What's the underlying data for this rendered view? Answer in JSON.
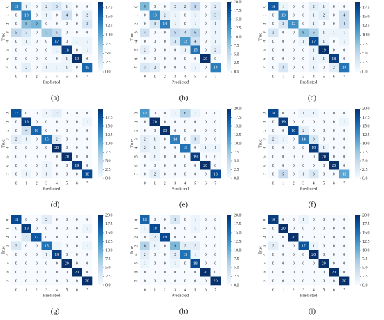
{
  "chart_data": [
    {
      "type": "heatmap",
      "caption": "(a)",
      "x_label": "Predicted",
      "y_label": "True",
      "colormap": "Blues",
      "x_categories": [
        "0",
        "1",
        "2",
        "3",
        "4",
        "5",
        "6",
        "7"
      ],
      "y_categories": [
        "0",
        "1",
        "2",
        "3",
        "4",
        "5",
        "6",
        "7"
      ],
      "values": [
        [
          13,
          1,
          0,
          2,
          3,
          1,
          0,
          0
        ],
        [
          0,
          13,
          0,
          1,
          0,
          4,
          0,
          2
        ],
        [
          0,
          8,
          9,
          0,
          0,
          0,
          0,
          3
        ],
        [
          5,
          3,
          0,
          7,
          5,
          0,
          0,
          0
        ],
        [
          0,
          1,
          0,
          0,
          17,
          0,
          1,
          1
        ],
        [
          0,
          0,
          0,
          0,
          1,
          18,
          0,
          1
        ],
        [
          0,
          0,
          0,
          0,
          0,
          1,
          19,
          0
        ],
        [
          0,
          2,
          0,
          1,
          1,
          1,
          0,
          15
        ]
      ],
      "zlim": [
        0,
        19
      ],
      "zticks": [
        {
          "value": 0,
          "label": "0.0"
        },
        2.5,
        {
          "value": 5,
          "label": "5.0"
        },
        7.5,
        {
          "value": 10,
          "label": "10.0"
        },
        12.5,
        {
          "value": 15,
          "label": "15.0"
        },
        17.5
      ]
    },
    {
      "type": "heatmap",
      "caption": "(b)",
      "x_label": "Predicted",
      "y_label": "True",
      "colormap": "Blues",
      "x_categories": [
        "0",
        "1",
        "2",
        "3",
        "4",
        "5",
        "6",
        "7"
      ],
      "y_categories": [
        "0",
        "1",
        "2",
        "3",
        "4",
        "5",
        "6",
        "7"
      ],
      "values": [
        [
          9,
          0,
          0,
          2,
          2,
          5,
          0,
          2
        ],
        [
          0,
          13,
          2,
          1,
          0,
          1,
          0,
          3
        ],
        [
          0,
          3,
          14,
          1,
          0,
          1,
          0,
          1
        ],
        [
          4,
          0,
          0,
          5,
          4,
          6,
          0,
          1
        ],
        [
          0,
          0,
          0,
          3,
          12,
          4,
          0,
          1
        ],
        [
          2,
          0,
          0,
          0,
          1,
          15,
          0,
          2
        ],
        [
          0,
          0,
          0,
          0,
          0,
          0,
          20,
          0
        ],
        [
          3,
          2,
          0,
          0,
          0,
          1,
          0,
          14
        ]
      ],
      "zlim": [
        0,
        20
      ],
      "zticks": [
        {
          "value": 0,
          "label": "0.0"
        },
        2.5,
        {
          "value": 5,
          "label": "5.0"
        },
        7.5,
        {
          "value": 10,
          "label": "10.0"
        },
        12.5,
        {
          "value": 15,
          "label": "15.0"
        },
        17.5,
        {
          "value": 20,
          "label": "20.0"
        }
      ]
    },
    {
      "type": "heatmap",
      "caption": "(c)",
      "x_label": "Predicted",
      "y_label": "True",
      "colormap": "Blues",
      "x_categories": [
        "0",
        "1",
        "2",
        "3",
        "4",
        "5",
        "6",
        "7"
      ],
      "y_categories": [
        "0",
        "1",
        "2",
        "3",
        "4",
        "5",
        "6",
        "7"
      ],
      "values": [
        [
          16,
          1,
          0,
          0,
          2,
          1,
          0,
          0
        ],
        [
          0,
          13,
          0,
          0,
          1,
          2,
          0,
          4
        ],
        [
          0,
          3,
          12,
          0,
          1,
          0,
          0,
          4
        ],
        [
          3,
          0,
          0,
          8,
          6,
          1,
          1,
          1
        ],
        [
          0,
          0,
          0,
          1,
          17,
          1,
          0,
          1
        ],
        [
          0,
          0,
          0,
          0,
          1,
          19,
          0,
          0
        ],
        [
          0,
          0,
          0,
          0,
          1,
          1,
          18,
          0
        ],
        [
          0,
          3,
          0,
          0,
          1,
          0,
          2,
          14
        ]
      ],
      "zlim": [
        0,
        19
      ],
      "zticks": [
        {
          "value": 0,
          "label": "0.0"
        },
        2.5,
        {
          "value": 5,
          "label": "5.0"
        },
        7.5,
        {
          "value": 10,
          "label": "10.0"
        },
        12.5,
        {
          "value": 15,
          "label": "15.0"
        },
        17.5
      ]
    },
    {
      "type": "heatmap",
      "caption": "(d)",
      "x_label": "Predicted",
      "y_label": "True",
      "colormap": "Blues",
      "x_categories": [
        "0",
        "1",
        "2",
        "3",
        "4",
        "5",
        "6",
        "7"
      ],
      "y_categories": [
        "0",
        "1",
        "2",
        "3",
        "4",
        "5",
        "6",
        "7"
      ],
      "values": [
        [
          17,
          0,
          0,
          1,
          2,
          0,
          0,
          0
        ],
        [
          0,
          19,
          0,
          0,
          0,
          0,
          0,
          1
        ],
        [
          0,
          4,
          16,
          0,
          0,
          0,
          0,
          0
        ],
        [
          2,
          1,
          0,
          15,
          2,
          0,
          0,
          0
        ],
        [
          0,
          0,
          0,
          0,
          20,
          0,
          0,
          0
        ],
        [
          0,
          0,
          0,
          0,
          0,
          20,
          0,
          0
        ],
        [
          0,
          0,
          0,
          1,
          0,
          0,
          19,
          0
        ],
        [
          0,
          1,
          0,
          1,
          0,
          0,
          0,
          18
        ]
      ],
      "zlim": [
        0,
        20
      ],
      "zticks": [
        {
          "value": 0,
          "label": "0.0"
        },
        2.5,
        {
          "value": 5,
          "label": "5.0"
        },
        7.5,
        {
          "value": 10,
          "label": "10.0"
        },
        12.5,
        {
          "value": 15,
          "label": "15.0"
        },
        17.5
      ]
    },
    {
      "type": "heatmap",
      "caption": "(e)",
      "x_label": "Predicted",
      "y_label": "True",
      "colormap": "Blues",
      "x_categories": [
        "0",
        "1",
        "2",
        "3",
        "4",
        "5",
        "6",
        "7"
      ],
      "y_categories": [
        "0",
        "1",
        "2",
        "3",
        "4",
        "5",
        "6",
        "7"
      ],
      "values": [
        [
          12,
          0,
          0,
          1,
          6,
          1,
          0,
          0
        ],
        [
          0,
          20,
          0,
          0,
          0,
          0,
          0,
          0
        ],
        [
          0,
          0,
          20,
          0,
          0,
          0,
          0,
          0
        ],
        [
          2,
          1,
          0,
          14,
          0,
          3,
          0,
          0
        ],
        [
          2,
          1,
          0,
          0,
          15,
          0,
          1,
          1
        ],
        [
          0,
          1,
          0,
          0,
          0,
          19,
          0,
          0
        ],
        [
          0,
          0,
          0,
          0,
          0,
          0,
          20,
          0
        ],
        [
          0,
          2,
          0,
          0,
          0,
          0,
          0,
          18
        ]
      ],
      "zlim": [
        0,
        20
      ],
      "zticks": [
        {
          "value": 0,
          "label": "0.0"
        },
        2.5,
        {
          "value": 5,
          "label": "5.0"
        },
        7.5,
        {
          "value": 10,
          "label": "10.0"
        },
        12.5,
        {
          "value": 15,
          "label": "15.0"
        },
        17.5,
        {
          "value": 20,
          "label": "20.0"
        }
      ]
    },
    {
      "type": "heatmap",
      "caption": "(f)",
      "x_label": "Predicted",
      "y_label": "True",
      "colormap": "Blues",
      "x_categories": [
        "0",
        "1",
        "2",
        "3",
        "4",
        "5",
        "6",
        "7"
      ],
      "y_categories": [
        "0",
        "1",
        "2",
        "3",
        "4",
        "5",
        "6",
        "7"
      ],
      "values": [
        [
          18,
          0,
          0,
          1,
          1,
          0,
          0,
          0
        ],
        [
          0,
          19,
          0,
          0,
          0,
          0,
          0,
          1
        ],
        [
          0,
          0,
          18,
          2,
          0,
          0,
          0,
          0
        ],
        [
          2,
          1,
          0,
          14,
          3,
          0,
          0,
          0
        ],
        [
          0,
          0,
          0,
          0,
          19,
          1,
          0,
          0
        ],
        [
          0,
          0,
          0,
          0,
          0,
          20,
          0,
          0
        ],
        [
          0,
          0,
          0,
          0,
          0,
          0,
          20,
          0
        ],
        [
          0,
          5,
          0,
          1,
          3,
          0,
          0,
          11
        ]
      ],
      "zlim": [
        0,
        20
      ],
      "zticks": [
        {
          "value": 0,
          "label": "0.0"
        },
        2.5,
        {
          "value": 5,
          "label": "5.0"
        },
        7.5,
        {
          "value": 10,
          "label": "10.0"
        },
        12.5,
        {
          "value": 15,
          "label": "15.0"
        },
        17.5,
        {
          "value": 20,
          "label": "20.0"
        }
      ]
    },
    {
      "type": "heatmap",
      "caption": "(g)",
      "x_label": "Predicted",
      "y_label": "True",
      "colormap": "Blues",
      "x_categories": [
        "0",
        "1",
        "2",
        "3",
        "4",
        "5",
        "6",
        "7"
      ],
      "y_categories": [
        "0",
        "1",
        "2",
        "3",
        "4",
        "5",
        "6",
        "7"
      ],
      "values": [
        [
          18,
          0,
          0,
          2,
          0,
          0,
          0,
          0
        ],
        [
          0,
          19,
          0,
          0,
          0,
          0,
          0,
          1
        ],
        [
          0,
          3,
          17,
          0,
          0,
          0,
          0,
          0
        ],
        [
          3,
          0,
          0,
          15,
          1,
          0,
          0,
          1
        ],
        [
          0,
          0,
          0,
          1,
          19,
          0,
          0,
          0
        ],
        [
          0,
          0,
          0,
          0,
          0,
          20,
          0,
          0
        ],
        [
          0,
          0,
          0,
          0,
          0,
          0,
          20,
          0
        ],
        [
          0,
          0,
          0,
          0,
          0,
          0,
          0,
          20
        ]
      ],
      "zlim": [
        0,
        20
      ],
      "zticks": [
        {
          "value": 0,
          "label": "0.0"
        },
        2.5,
        {
          "value": 5,
          "label": "5.0"
        },
        7.5,
        {
          "value": 10,
          "label": "10.0"
        },
        12.5,
        {
          "value": 15,
          "label": "15.0"
        },
        17.5,
        {
          "value": 20,
          "label": "20.0"
        }
      ]
    },
    {
      "type": "heatmap",
      "caption": "(h)",
      "x_label": "Predicted",
      "y_label": "True",
      "colormap": "Blues",
      "x_categories": [
        "0",
        "1",
        "2",
        "3",
        "4",
        "5",
        "6",
        "7"
      ],
      "y_categories": [
        "0",
        "1",
        "2",
        "3",
        "4",
        "5",
        "6",
        "7"
      ],
      "values": [
        [
          16,
          0,
          0,
          3,
          0,
          1,
          0,
          0
        ],
        [
          1,
          18,
          0,
          0,
          0,
          1,
          0,
          0
        ],
        [
          0,
          2,
          18,
          0,
          0,
          0,
          0,
          0
        ],
        [
          6,
          1,
          0,
          9,
          2,
          2,
          0,
          0
        ],
        [
          2,
          0,
          0,
          2,
          15,
          1,
          0,
          0
        ],
        [
          1,
          0,
          0,
          1,
          0,
          18,
          0,
          0
        ],
        [
          0,
          0,
          0,
          0,
          0,
          0,
          20,
          0
        ],
        [
          0,
          0,
          0,
          0,
          0,
          0,
          0,
          20
        ]
      ],
      "zlim": [
        0,
        20
      ],
      "zticks": [
        {
          "value": 0,
          "label": "0.0"
        },
        2.5,
        {
          "value": 5,
          "label": "5.0"
        },
        7.5,
        {
          "value": 10,
          "label": "10.0"
        },
        12.5,
        {
          "value": 15,
          "label": "15.0"
        },
        17.5,
        {
          "value": 20,
          "label": "20.0"
        }
      ]
    },
    {
      "type": "heatmap",
      "caption": "(i)",
      "x_label": "Predicted",
      "y_label": "True",
      "colormap": "Blues",
      "x_categories": [
        "0",
        "1",
        "2",
        "3",
        "4",
        "5",
        "6",
        "7"
      ],
      "y_categories": [
        "0",
        "1",
        "2",
        "3",
        "4",
        "5",
        "6",
        "7"
      ],
      "values": [
        [
          19,
          0,
          0,
          1,
          0,
          0,
          0,
          0
        ],
        [
          0,
          20,
          0,
          0,
          0,
          0,
          0,
          0
        ],
        [
          0,
          0,
          20,
          0,
          0,
          0,
          0,
          0
        ],
        [
          2,
          0,
          0,
          17,
          1,
          0,
          0,
          0
        ],
        [
          0,
          0,
          0,
          0,
          20,
          0,
          0,
          0
        ],
        [
          0,
          0,
          0,
          0,
          0,
          20,
          0,
          0
        ],
        [
          0,
          0,
          0,
          0,
          0,
          0,
          20,
          0
        ],
        [
          0,
          0,
          0,
          0,
          0,
          0,
          0,
          20
        ]
      ],
      "zlim": [
        0,
        20
      ],
      "zticks": [
        {
          "value": 0,
          "label": "0.0"
        },
        2.5,
        {
          "value": 5,
          "label": "5.0"
        },
        7.5,
        {
          "value": 10,
          "label": "10.0"
        },
        12.5,
        {
          "value": 15,
          "label": "15.0"
        },
        17.5,
        {
          "value": 20,
          "label": "20.0"
        }
      ]
    }
  ]
}
